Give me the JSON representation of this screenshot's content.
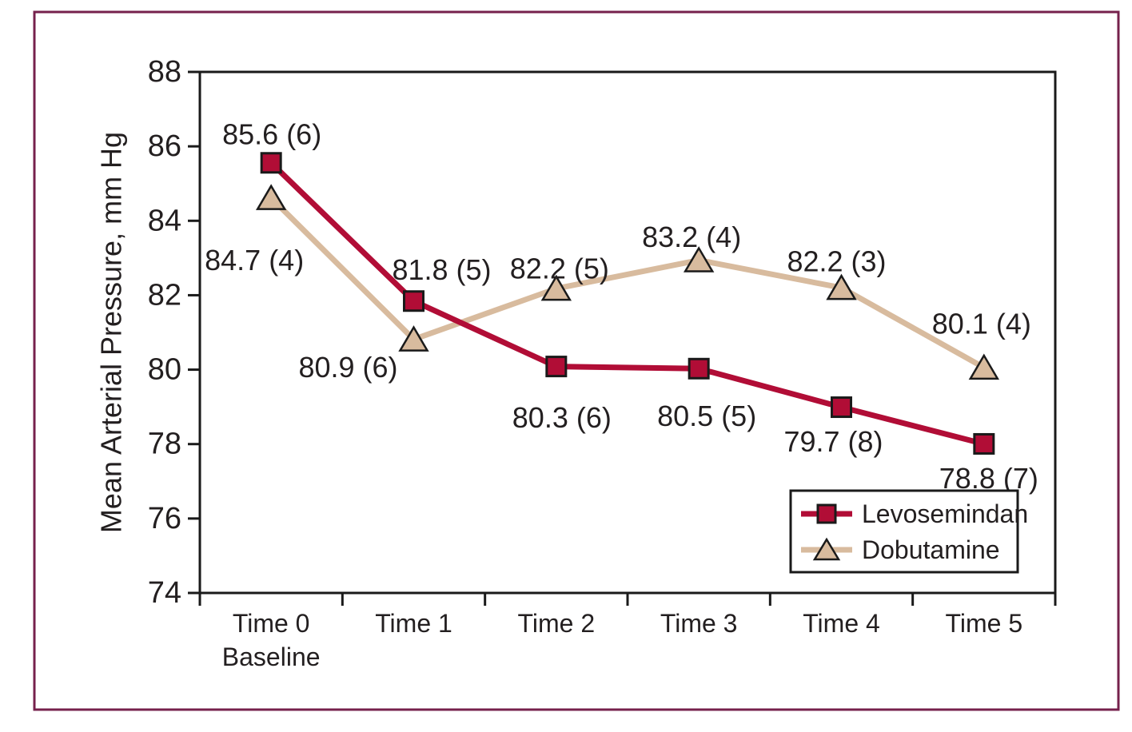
{
  "figure": {
    "background": "#ffffff",
    "border_color": "#76214c",
    "axis_color": "#1a1a1a",
    "text_color": "#231f20"
  },
  "chart_data": {
    "type": "line",
    "ylabel": "Mean Arterial Pressure, mm Hg",
    "ylim": [
      74,
      88
    ],
    "yticks": [
      88,
      86,
      84,
      82,
      80,
      78,
      76,
      74
    ],
    "grid": false,
    "legend_position": "bottom-right",
    "categories": [
      [
        "Time 0",
        "Baseline"
      ],
      [
        "Time 1"
      ],
      [
        "Time 2"
      ],
      [
        "Time 3"
      ],
      [
        "Time 4"
      ],
      [
        "Time 5"
      ]
    ],
    "series": [
      {
        "name": "Levosemindan",
        "marker": "square",
        "color": "#b10d36",
        "marker_border": "#1a1a1a",
        "values": [
          85.6,
          81.8,
          80.3,
          80.5,
          79.7,
          78.8
        ],
        "point_labels": [
          "85.6 (6)",
          "81.8 (5)",
          "80.3 (6)",
          "80.5 (5)",
          "79.7 (8)",
          "78.8 (7)"
        ]
      },
      {
        "name": "Dobutamine",
        "marker": "triangle",
        "color": "#d8bb9e",
        "marker_border": "#1a1a1a",
        "values": [
          84.7,
          80.9,
          82.2,
          83.2,
          82.2,
          80.1
        ],
        "point_labels": [
          "84.7 (4)",
          "80.9 (6)",
          "82.2 (5)",
          "83.2 (4)",
          "82.2 (3)",
          "80.1 (4)"
        ]
      }
    ]
  }
}
